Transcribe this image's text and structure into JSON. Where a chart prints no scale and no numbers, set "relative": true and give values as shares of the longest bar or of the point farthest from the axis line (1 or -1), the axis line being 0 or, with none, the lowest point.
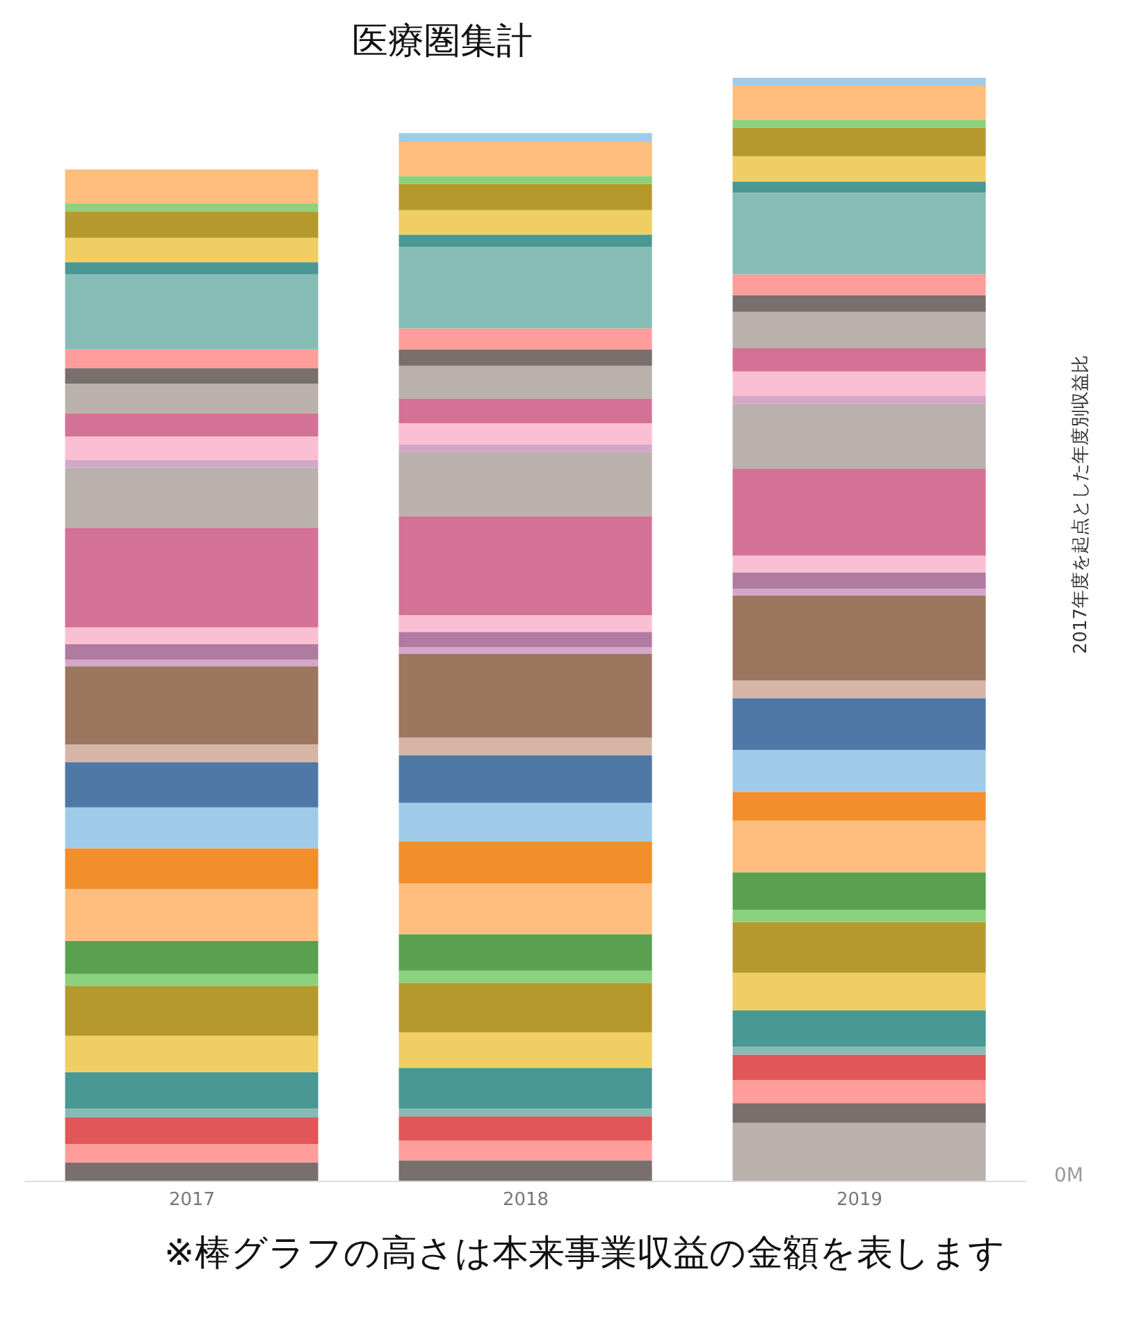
{
  "chart_data": {
    "type": "bar",
    "title": "医療圏集計",
    "y2label": "2017年度を起点とした年度別収益比",
    "annotations": [
      "※棒グラフの高さは本来事業収益の金額を表します",
      "0M"
    ],
    "categories": [
      "2017",
      "2018",
      "2019"
    ],
    "stacked": true,
    "relative": true,
    "legend": false,
    "series": [
      {
        "color": "#bab0ac",
        "values": [
          0,
          0,
          0.053
        ]
      },
      {
        "color": "#79706e",
        "values": [
          0.017,
          0.019,
          0.018
        ]
      },
      {
        "color": "#ff9d9a",
        "values": [
          0.017,
          0.018,
          0.021
        ]
      },
      {
        "color": "#e15759",
        "values": [
          0.024,
          0.022,
          0.023
        ]
      },
      {
        "color": "#86bcb6",
        "values": [
          0.008,
          0.007,
          0.007
        ]
      },
      {
        "color": "#499894",
        "values": [
          0.033,
          0.037,
          0.033
        ]
      },
      {
        "color": "#f1ce63",
        "values": [
          0.033,
          0.032,
          0.034
        ]
      },
      {
        "color": "#b6992d",
        "values": [
          0.045,
          0.045,
          0.046
        ]
      },
      {
        "color": "#8cd17d",
        "values": [
          0.011,
          0.011,
          0.011
        ]
      },
      {
        "color": "#59a14f",
        "values": [
          0.03,
          0.033,
          0.034
        ]
      },
      {
        "color": "#ffbe7d",
        "values": [
          0.047,
          0.046,
          0.047
        ]
      },
      {
        "color": "#f28e2b",
        "values": [
          0.037,
          0.038,
          0.026
        ]
      },
      {
        "color": "#a0cbe8",
        "values": [
          0.037,
          0.035,
          0.038
        ]
      },
      {
        "color": "#4e79a7",
        "values": [
          0.041,
          0.043,
          0.047
        ]
      },
      {
        "color": "#d7b5a6",
        "values": [
          0.016,
          0.016,
          0.016
        ]
      },
      {
        "color": "#9d7660",
        "values": [
          0.071,
          0.076,
          0.077
        ]
      },
      {
        "color": "#d4a6c8",
        "values": [
          0.006,
          0.006,
          0.006
        ]
      },
      {
        "color": "#b07aa1",
        "values": [
          0.014,
          0.014,
          0.015
        ]
      },
      {
        "color": "#fabfd2",
        "values": [
          0.015,
          0.015,
          0.015
        ]
      },
      {
        "color": "#d37295",
        "values": [
          0.09,
          0.09,
          0.079
        ]
      },
      {
        "color": "#bab0ac",
        "values": [
          0.055,
          0.058,
          0.059
        ]
      },
      {
        "color": "#d4a6c8",
        "values": [
          0.007,
          0.007,
          0.007
        ]
      },
      {
        "color": "#fabfd2",
        "values": [
          0.021,
          0.019,
          0.022
        ]
      },
      {
        "color": "#d37295",
        "values": [
          0.021,
          0.022,
          0.021
        ]
      },
      {
        "color": "#bab0ac",
        "values": [
          0.027,
          0.03,
          0.033
        ]
      },
      {
        "color": "#79706e",
        "values": [
          0.014,
          0.015,
          0.015
        ]
      },
      {
        "color": "#ff9d9a",
        "values": [
          0.017,
          0.019,
          0.019
        ]
      },
      {
        "color": "#86bcb6",
        "values": [
          0.068,
          0.074,
          0.074
        ]
      },
      {
        "color": "#499894",
        "values": [
          0.011,
          0.011,
          0.01
        ]
      },
      {
        "color": "#f1ce63",
        "values": [
          0.022,
          0.022,
          0.023
        ]
      },
      {
        "color": "#b6992d",
        "values": [
          0.024,
          0.024,
          0.026
        ]
      },
      {
        "color": "#8cd17d",
        "values": [
          0.007,
          0.007,
          0.007
        ]
      },
      {
        "color": "#ffbe7d",
        "values": [
          0.031,
          0.031,
          0.031
        ]
      },
      {
        "color": "#a0cbe8",
        "values": [
          0,
          0.008,
          0.007
        ]
      }
    ]
  }
}
